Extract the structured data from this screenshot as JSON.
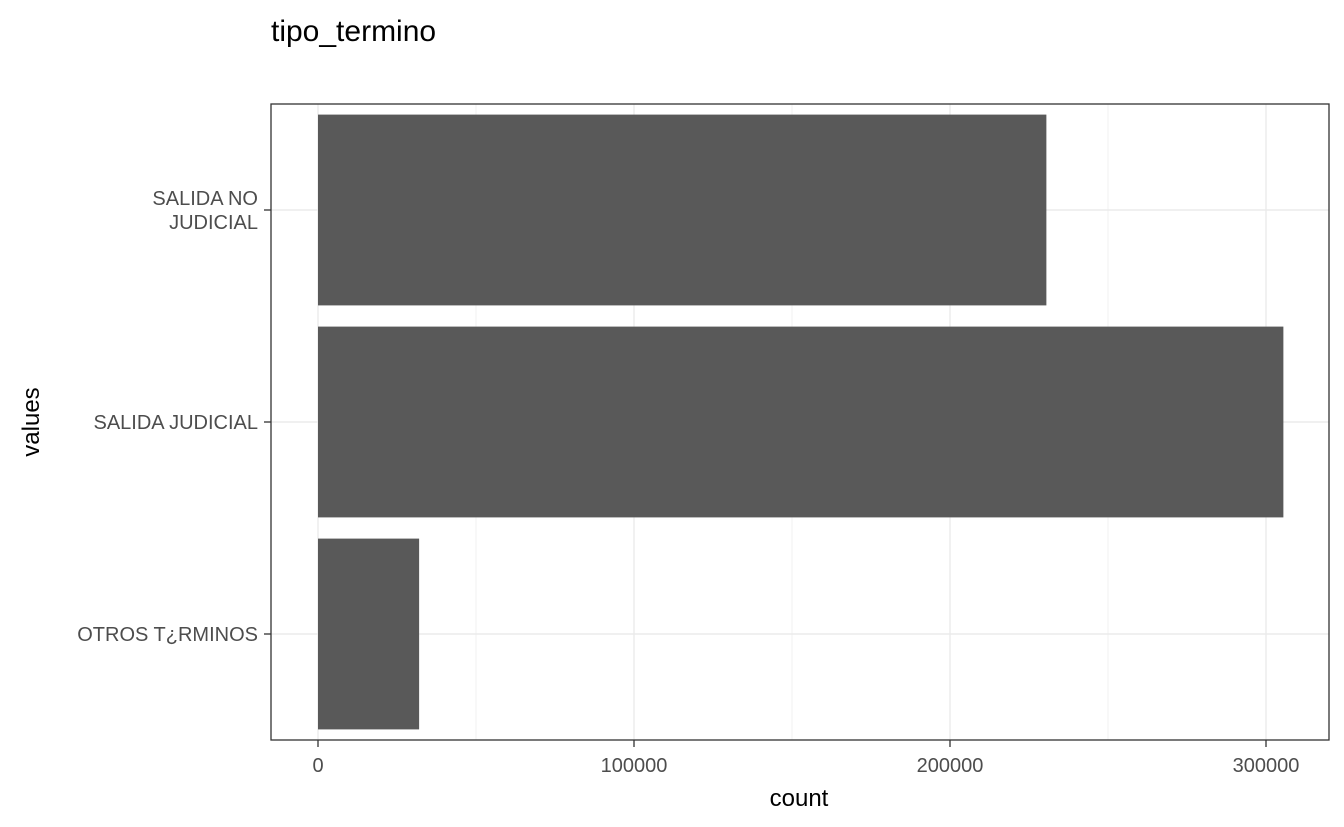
{
  "chart_data": {
    "type": "bar",
    "orientation": "horizontal",
    "title": "tipo_termino",
    "xlabel": "count",
    "ylabel": "values",
    "categories": [
      [
        "SALIDA NO",
        "JUDICIAL"
      ],
      [
        "SALIDA JUDICIAL"
      ],
      [
        "OTROS T¿RMINOS"
      ]
    ],
    "values": [
      230500,
      305500,
      32000
    ],
    "xlim": [
      0,
      320000
    ],
    "xticks": [
      0,
      100000,
      200000,
      300000
    ],
    "xtick_labels": [
      "0",
      "100000",
      "200000",
      "300000"
    ],
    "grid": true,
    "legend": "none",
    "colors": {
      "bar": "#595959",
      "grid_major": "#ebebeb",
      "grid_minor": "#f2f2f2",
      "panel_border": "#333333",
      "tick_text": "#4d4d4d"
    }
  }
}
